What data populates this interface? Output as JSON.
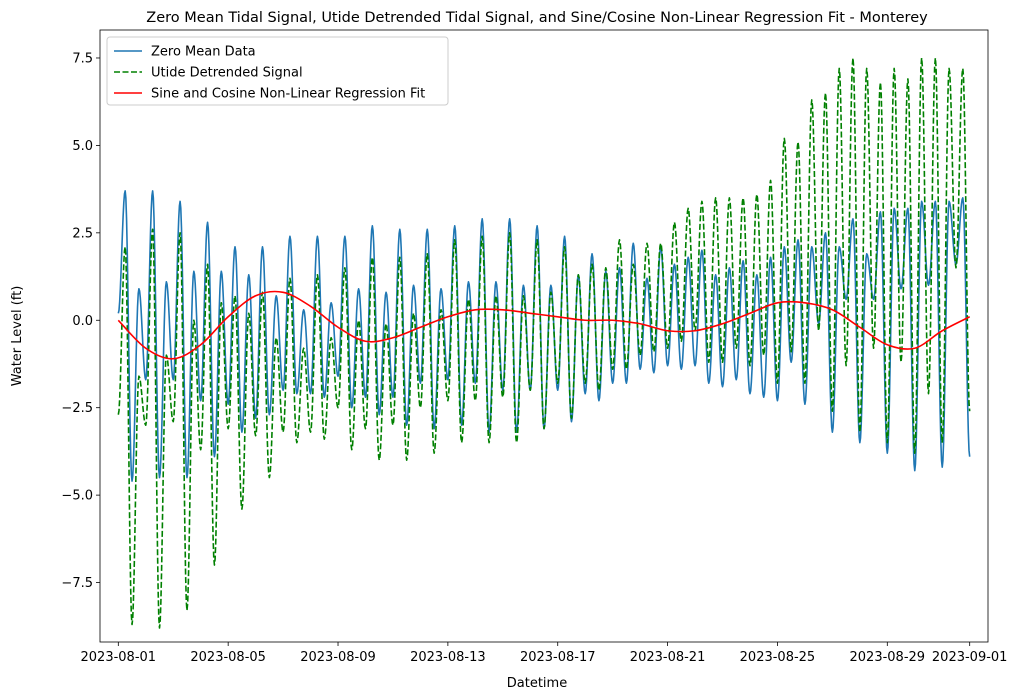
{
  "chart_data": {
    "type": "line",
    "title": "Zero Mean Tidal Signal, Utide Detrended Tidal Signal, and Sine/Cosine Non-Linear Regression Fit - Monterey",
    "xlabel": "Datetime",
    "ylabel": "Water Level (ft)",
    "x_range": [
      "2023-08-01",
      "2023-09-01"
    ],
    "xlim": [
      "2023-07-31T08:00",
      "2023-09-01T16:00"
    ],
    "ylim": [
      -9.2,
      8.3
    ],
    "x_ticks": [
      "2023-08-01",
      "2023-08-05",
      "2023-08-09",
      "2023-08-13",
      "2023-08-17",
      "2023-08-21",
      "2023-08-25",
      "2023-08-29",
      "2023-09-01"
    ],
    "y_ticks": [
      -7.5,
      -5.0,
      -2.5,
      0.0,
      2.5,
      5.0,
      7.5
    ],
    "y_tick_labels": [
      "−7.5",
      "−5.0",
      "−2.5",
      "0.0",
      "2.5",
      "5.0",
      "7.5"
    ],
    "grid": false,
    "legend_position": "top-left",
    "series": [
      {
        "name": "Zero Mean Data",
        "color": "#1f77b4",
        "style": "solid",
        "extrema_dates": [
          "2023-08-01T00:00",
          "2023-08-01T06:00",
          "2023-08-01T12:00",
          "2023-08-01T18:00",
          "2023-08-02T00:00",
          "2023-08-02T06:00",
          "2023-08-02T12:00",
          "2023-08-02T18:00",
          "2023-08-03T00:00",
          "2023-08-03T06:00",
          "2023-08-03T12:00",
          "2023-08-03T18:00",
          "2023-08-04T00:00",
          "2023-08-04T06:00",
          "2023-08-04T12:00",
          "2023-08-04T18:00",
          "2023-08-05T00:00",
          "2023-08-05T06:00",
          "2023-08-05T12:00",
          "2023-08-05T18:00",
          "2023-08-06T00:00",
          "2023-08-06T06:00",
          "2023-08-06T12:00",
          "2023-08-06T18:00",
          "2023-08-07T00:00",
          "2023-08-07T06:00",
          "2023-08-07T12:00",
          "2023-08-07T18:00",
          "2023-08-08T00:00",
          "2023-08-08T06:00",
          "2023-08-08T12:00",
          "2023-08-08T18:00",
          "2023-08-09T00:00",
          "2023-08-09T06:00",
          "2023-08-09T12:00",
          "2023-08-09T18:00",
          "2023-08-10T00:00",
          "2023-08-10T06:00",
          "2023-08-10T12:00",
          "2023-08-10T18:00",
          "2023-08-11T00:00",
          "2023-08-11T06:00",
          "2023-08-11T12:00",
          "2023-08-11T18:00",
          "2023-08-12T00:00",
          "2023-08-12T06:00",
          "2023-08-12T12:00",
          "2023-08-12T18:00",
          "2023-08-13T00:00",
          "2023-08-13T06:00",
          "2023-08-13T12:00",
          "2023-08-13T18:00",
          "2023-08-14T00:00",
          "2023-08-14T06:00",
          "2023-08-14T12:00",
          "2023-08-14T18:00",
          "2023-08-15T00:00",
          "2023-08-15T06:00",
          "2023-08-15T12:00",
          "2023-08-15T18:00",
          "2023-08-16T00:00",
          "2023-08-16T06:00",
          "2023-08-16T12:00",
          "2023-08-16T18:00",
          "2023-08-17T00:00",
          "2023-08-17T06:00",
          "2023-08-17T12:00",
          "2023-08-17T18:00",
          "2023-08-18T00:00",
          "2023-08-18T06:00",
          "2023-08-18T12:00",
          "2023-08-18T18:00",
          "2023-08-19T00:00",
          "2023-08-19T06:00",
          "2023-08-19T12:00",
          "2023-08-19T18:00",
          "2023-08-20T00:00",
          "2023-08-20T06:00",
          "2023-08-20T12:00",
          "2023-08-20T18:00",
          "2023-08-21T00:00",
          "2023-08-21T06:00",
          "2023-08-21T12:00",
          "2023-08-21T18:00",
          "2023-08-22T00:00",
          "2023-08-22T06:00",
          "2023-08-22T12:00",
          "2023-08-22T18:00",
          "2023-08-23T00:00",
          "2023-08-23T06:00",
          "2023-08-23T12:00",
          "2023-08-23T18:00",
          "2023-08-24T00:00",
          "2023-08-24T06:00",
          "2023-08-24T12:00",
          "2023-08-24T18:00",
          "2023-08-25T00:00",
          "2023-08-25T06:00",
          "2023-08-25T12:00",
          "2023-08-25T18:00",
          "2023-08-26T00:00",
          "2023-08-26T06:00",
          "2023-08-26T12:00",
          "2023-08-26T18:00",
          "2023-08-27T00:00",
          "2023-08-27T06:00",
          "2023-08-27T12:00",
          "2023-08-27T18:00",
          "2023-08-28T00:00",
          "2023-08-28T06:00",
          "2023-08-28T12:00",
          "2023-08-28T18:00",
          "2023-08-29T00:00",
          "2023-08-29T06:00",
          "2023-08-29T12:00",
          "2023-08-29T18:00",
          "2023-08-30T00:00",
          "2023-08-30T06:00",
          "2023-08-30T12:00",
          "2023-08-30T18:00",
          "2023-08-31T00:00",
          "2023-08-31T06:00",
          "2023-08-31T12:00",
          "2023-08-31T18:00",
          "2023-09-01T00:00"
        ],
        "extrema_values": [
          0.2,
          3.7,
          -4.6,
          0.9,
          -1.7,
          3.7,
          -4.5,
          1.1,
          -1.7,
          3.4,
          -4.5,
          1.4,
          -2.3,
          2.8,
          -3.9,
          1.4,
          -2.4,
          2.1,
          -3.2,
          1.3,
          -2.8,
          2.1,
          -2.7,
          0.7,
          -2.0,
          2.4,
          -2.1,
          0.3,
          -2.1,
          2.4,
          -2.2,
          0.5,
          -1.6,
          2.4,
          -2.5,
          0.9,
          -2.2,
          2.7,
          -2.7,
          0.8,
          -2.2,
          2.6,
          -3.0,
          1.0,
          -1.8,
          2.6,
          -3.1,
          0.9,
          -1.7,
          2.7,
          -3.0,
          1.1,
          -1.8,
          2.9,
          -3.2,
          1.1,
          -2.0,
          2.9,
          -3.2,
          1.0,
          -2.0,
          2.7,
          -3.1,
          1.0,
          -2.0,
          2.4,
          -2.9,
          1.3,
          -2.1,
          1.9,
          -2.3,
          1.4,
          -1.8,
          1.5,
          -1.8,
          2.2,
          -1.4,
          1.2,
          -1.5,
          2.1,
          -1.3,
          1.6,
          -1.4,
          1.8,
          -1.3,
          2.0,
          -1.8,
          1.3,
          -1.9,
          1.5,
          -1.7,
          1.7,
          -2.1,
          1.3,
          -2.2,
          1.8,
          -2.3,
          2.1,
          -1.2,
          2.3,
          -2.4,
          2.1,
          -0.1,
          2.5,
          -3.2,
          2.1,
          0.6,
          2.9,
          -3.5,
          1.9,
          0.6,
          3.1,
          -3.8,
          3.2,
          0.9,
          3.2,
          -4.3,
          3.4,
          1.0,
          3.4,
          -4.2,
          3.4,
          1.6,
          3.5,
          -3.9,
          2.0,
          -1.4
        ],
        "values": [
          -1.6,
          3.7,
          2.5,
          2.4,
          2.4,
          2.7,
          2.9,
          2.9,
          2.5,
          1.7,
          1.6,
          1.9,
          1.8,
          2.6,
          3.4,
          3.4,
          -1.4
        ]
      },
      {
        "name": "Utide Detrended Signal",
        "color": "#008000",
        "style": "dashed",
        "extrema_dates": [
          "2023-08-01T00:00",
          "2023-08-01T06:00",
          "2023-08-01T12:00",
          "2023-08-01T18:00",
          "2023-08-02T00:00",
          "2023-08-02T06:00",
          "2023-08-02T12:00",
          "2023-08-02T18:00",
          "2023-08-03T00:00",
          "2023-08-03T06:00",
          "2023-08-03T12:00",
          "2023-08-03T18:00",
          "2023-08-04T00:00",
          "2023-08-04T06:00",
          "2023-08-04T12:00",
          "2023-08-04T18:00",
          "2023-08-05T00:00",
          "2023-08-05T06:00",
          "2023-08-05T12:00",
          "2023-08-05T18:00",
          "2023-08-06T00:00",
          "2023-08-06T06:00",
          "2023-08-06T12:00",
          "2023-08-06T18:00",
          "2023-08-07T00:00",
          "2023-08-07T06:00",
          "2023-08-07T12:00",
          "2023-08-07T18:00",
          "2023-08-08T00:00",
          "2023-08-08T06:00",
          "2023-08-08T12:00",
          "2023-08-08T18:00",
          "2023-08-09T00:00",
          "2023-08-09T06:00",
          "2023-08-09T12:00",
          "2023-08-09T18:00",
          "2023-08-10T00:00",
          "2023-08-10T06:00",
          "2023-08-10T12:00",
          "2023-08-10T18:00",
          "2023-08-11T00:00",
          "2023-08-11T06:00",
          "2023-08-11T12:00",
          "2023-08-11T18:00",
          "2023-08-12T00:00",
          "2023-08-12T06:00",
          "2023-08-12T12:00",
          "2023-08-12T18:00",
          "2023-08-13T00:00",
          "2023-08-13T06:00",
          "2023-08-13T12:00",
          "2023-08-13T18:00",
          "2023-08-14T00:00",
          "2023-08-14T06:00",
          "2023-08-14T12:00",
          "2023-08-14T18:00",
          "2023-08-15T00:00",
          "2023-08-15T06:00",
          "2023-08-15T12:00",
          "2023-08-15T18:00",
          "2023-08-16T00:00",
          "2023-08-16T06:00",
          "2023-08-16T12:00",
          "2023-08-16T18:00",
          "2023-08-17T00:00",
          "2023-08-17T06:00",
          "2023-08-17T12:00",
          "2023-08-17T18:00",
          "2023-08-18T00:00",
          "2023-08-18T06:00",
          "2023-08-18T12:00",
          "2023-08-18T18:00",
          "2023-08-19T00:00",
          "2023-08-19T06:00",
          "2023-08-19T12:00",
          "2023-08-19T18:00",
          "2023-08-20T00:00",
          "2023-08-20T06:00",
          "2023-08-20T12:00",
          "2023-08-20T18:00",
          "2023-08-21T00:00",
          "2023-08-21T06:00",
          "2023-08-21T12:00",
          "2023-08-21T18:00",
          "2023-08-22T00:00",
          "2023-08-22T06:00",
          "2023-08-22T12:00",
          "2023-08-22T18:00",
          "2023-08-23T00:00",
          "2023-08-23T06:00",
          "2023-08-23T12:00",
          "2023-08-23T18:00",
          "2023-08-24T00:00",
          "2023-08-24T06:00",
          "2023-08-24T12:00",
          "2023-08-24T18:00",
          "2023-08-25T00:00",
          "2023-08-25T06:00",
          "2023-08-25T12:00",
          "2023-08-25T18:00",
          "2023-08-26T00:00",
          "2023-08-26T06:00",
          "2023-08-26T12:00",
          "2023-08-26T18:00",
          "2023-08-27T00:00",
          "2023-08-27T06:00",
          "2023-08-27T12:00",
          "2023-08-27T18:00",
          "2023-08-28T00:00",
          "2023-08-28T06:00",
          "2023-08-28T12:00",
          "2023-08-28T18:00",
          "2023-08-29T00:00",
          "2023-08-29T06:00",
          "2023-08-29T12:00",
          "2023-08-29T18:00",
          "2023-08-30T00:00",
          "2023-08-30T06:00",
          "2023-08-30T12:00",
          "2023-08-30T18:00",
          "2023-08-31T00:00",
          "2023-08-31T06:00",
          "2023-08-31T12:00",
          "2023-08-31T18:00",
          "2023-09-01T00:00"
        ],
        "extrema_values": [
          -2.7,
          2.1,
          -8.7,
          -1.6,
          -3.0,
          2.6,
          -8.8,
          -1.0,
          -2.9,
          2.5,
          -8.3,
          0.0,
          -3.7,
          1.6,
          -7.0,
          0.5,
          -3.1,
          0.7,
          -5.4,
          0.2,
          -3.3,
          0.8,
          -4.5,
          -0.5,
          -3.2,
          1.2,
          -3.5,
          -0.8,
          -3.2,
          1.3,
          -3.4,
          -0.5,
          -2.5,
          1.5,
          -3.7,
          0.0,
          -3.1,
          1.8,
          -4.0,
          -0.1,
          -3.0,
          1.8,
          -4.0,
          0.2,
          -2.5,
          1.9,
          -3.8,
          0.3,
          -2.3,
          2.3,
          -3.5,
          0.6,
          -2.3,
          2.4,
          -3.5,
          0.7,
          -2.2,
          2.5,
          -3.5,
          0.7,
          -2.0,
          2.3,
          -3.1,
          0.8,
          -1.8,
          2.1,
          -2.8,
          1.3,
          -1.8,
          1.6,
          -2.0,
          1.5,
          -1.4,
          2.3,
          -1.4,
          1.6,
          -1.0,
          2.2,
          -0.9,
          2.2,
          -0.8,
          2.8,
          -0.6,
          3.2,
          -0.3,
          3.4,
          -1.2,
          3.5,
          -1.2,
          3.5,
          -0.8,
          3.5,
          -1.3,
          3.6,
          -1.0,
          4.0,
          -1.8,
          5.2,
          -0.9,
          5.1,
          -1.8,
          6.3,
          -0.3,
          6.5,
          -2.6,
          7.2,
          -1.3,
          7.5,
          -3.2,
          7.2,
          -0.8,
          6.8,
          -3.5,
          7.2,
          -1.2,
          6.9,
          -3.8,
          7.5,
          -2.1,
          7.5,
          -3.5,
          7.2,
          1.5,
          7.2,
          -2.6,
          5.1,
          2.0
        ],
        "values": [
          -8.7,
          -8.8,
          -8.3,
          -7.0,
          -5.4,
          -4.5,
          -4.0,
          -3.5,
          -3.5,
          -2.8,
          -1.8,
          -1.0,
          -1.3,
          -3.2,
          -3.8,
          -3.5,
          7.5
        ]
      },
      {
        "name": "Sine and Cosine Non-Linear Regression Fit",
        "color": "#ff0000",
        "style": "solid",
        "x": [
          "2023-08-01",
          "2023-08-02",
          "2023-08-03",
          "2023-08-04",
          "2023-08-05",
          "2023-08-06",
          "2023-08-07",
          "2023-08-08",
          "2023-08-09",
          "2023-08-10",
          "2023-08-11",
          "2023-08-12",
          "2023-08-13",
          "2023-08-14",
          "2023-08-15",
          "2023-08-16",
          "2023-08-17",
          "2023-08-18",
          "2023-08-19",
          "2023-08-20",
          "2023-08-21",
          "2023-08-22",
          "2023-08-23",
          "2023-08-24",
          "2023-08-25",
          "2023-08-26",
          "2023-08-27",
          "2023-08-28",
          "2023-08-29",
          "2023-08-30",
          "2023-08-31",
          "2023-09-01"
        ],
        "values": [
          0.0,
          -0.8,
          -1.1,
          -0.7,
          0.1,
          0.7,
          0.8,
          0.4,
          -0.2,
          -0.6,
          -0.5,
          -0.2,
          0.1,
          0.3,
          0.3,
          0.2,
          0.1,
          0.0,
          0.0,
          -0.1,
          -0.3,
          -0.3,
          -0.1,
          0.2,
          0.5,
          0.5,
          0.3,
          -0.2,
          -0.7,
          -0.8,
          -0.3,
          0.1
        ]
      }
    ]
  }
}
